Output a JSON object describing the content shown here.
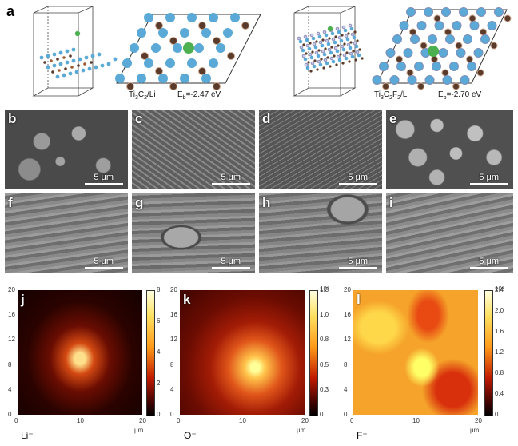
{
  "panel_a": {
    "letter": "a",
    "left_label": "Ti3C2/Li",
    "left_energy": "Eb=-2.47 eV",
    "right_label": "Ti3C2F2/Li",
    "right_energy": "Eb=-2.70 eV"
  },
  "sem_top": [
    {
      "letter": "b",
      "scale": "5 μm"
    },
    {
      "letter": "c",
      "scale": "5 μm"
    },
    {
      "letter": "d",
      "scale": "5 μm"
    },
    {
      "letter": "e",
      "scale": "5 μm"
    }
  ],
  "sem_bottom": [
    {
      "letter": "f",
      "scale": "5 μm"
    },
    {
      "letter": "g",
      "scale": "5 μm"
    },
    {
      "letter": "h",
      "scale": "5 μm"
    },
    {
      "letter": "i",
      "scale": "5 μm"
    }
  ],
  "maps": [
    {
      "letter": "j",
      "ion": "Li⁻",
      "cbar_max": "8",
      "cbar_ticks": [
        "8",
        "6",
        "4",
        "2",
        "0"
      ],
      "unit": ""
    },
    {
      "letter": "k",
      "ion": "O⁻",
      "cbar_ticks": [
        "1.3",
        "1.0",
        "0.8",
        "0.5",
        "0.3",
        "0"
      ],
      "unit": "10²"
    },
    {
      "letter": "l",
      "ion": "F⁻",
      "cbar_ticks": [
        "2.4",
        "2.0",
        "1.6",
        "1.2",
        "0.8",
        "0.4",
        "0"
      ],
      "unit": "10³"
    }
  ],
  "map_axes": {
    "y_ticks": [
      "20",
      "16",
      "12",
      "8",
      "4",
      "0"
    ],
    "x_ticks": [
      "0",
      "10",
      "20"
    ],
    "x_unit": "μm"
  },
  "colors": {
    "sem_dark": "#3a3a3a",
    "sem_light": "#b8b8b8",
    "ti_atom": "#5aa9d6",
    "li_atom": "#4caf50",
    "c_atom": "#5a3a2a"
  }
}
